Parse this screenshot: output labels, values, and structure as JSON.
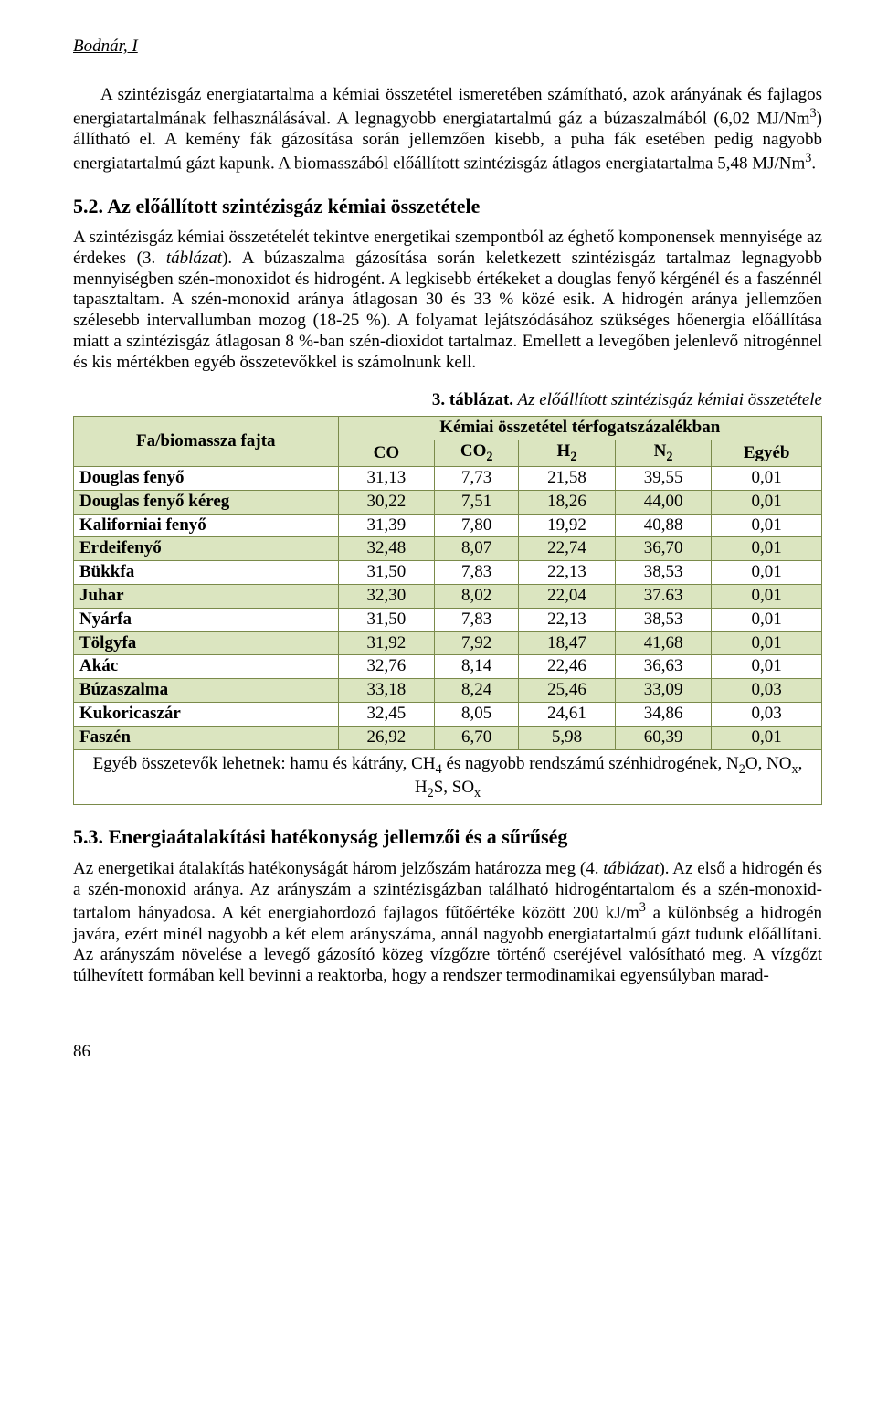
{
  "header": {
    "author": "Bodnár, I"
  },
  "p1_html": "A szintézisgáz energiatartalma a kémiai összetétel ismeretében számítható, azok arányának és fajlagos energiatartalmának felhasználásával. A legnagyobb energiatartalmú gáz a búzaszalmából (6,02 MJ/Nm<sup>3</sup>) állítható el. A kemény fák gázosítása során jellemzően kisebb, a puha fák esetében pedig nagyobb energiatartalmú gázt kapunk. A biomasszából előállított szintézisgáz átlagos energiatartalma 5,48 MJ/Nm<sup>3</sup>.",
  "sec52": {
    "title": "5.2. Az előállított szintézisgáz kémiai összetétele"
  },
  "p2_html": "A szintézisgáz kémiai összetételét tekintve energetikai szempontból az éghető komponensek mennyisége az érdekes (3. <i>táblázat</i>). A búzaszalma gázosítása során keletkezett szintézisgáz tartalmaz legnagyobb mennyiségben szén-monoxidot és hidrogént. A legkisebb értékeket a douglas fenyő kérgénél és a faszénnél tapasztaltam. A szén-monoxid aránya átlagosan 30 és 33 % közé esik. A hidrogén aránya jellemzően szélesebb intervallumban mozog (18-25 %). A folyamat lejátszódásához szükséges hőenergia előállítása miatt a szintézisgáz átlagosan 8 %-ban szén-dioxidot tartalmaz. Emellett a levegőben jelenlevő nitrogénnel és kis mértékben egyéb összetevőkkel is számolnunk kell.",
  "table": {
    "caption_prefix": "3. táblázat.",
    "caption_rest": " Az előállított szintézisgáz kémiai összetétele",
    "col_main": "Fa/biomassza fajta",
    "group_header": "Kémiai összetétel térfogatszázalékban",
    "columns_html": [
      "CO",
      "CO<sub>2</sub>",
      "H<sub>2</sub>",
      "N<sub>2</sub>",
      "Egyéb"
    ],
    "rows": [
      {
        "shade": false,
        "label": "Douglas fenyő",
        "vals": [
          "31,13",
          "7,73",
          "21,58",
          "39,55",
          "0,01"
        ]
      },
      {
        "shade": true,
        "label": "Douglas fenyő kéreg",
        "vals": [
          "30,22",
          "7,51",
          "18,26",
          "44,00",
          "0,01"
        ]
      },
      {
        "shade": false,
        "label": "Kaliforniai fenyő",
        "vals": [
          "31,39",
          "7,80",
          "19,92",
          "40,88",
          "0,01"
        ]
      },
      {
        "shade": true,
        "label": "Erdeifenyő",
        "vals": [
          "32,48",
          "8,07",
          "22,74",
          "36,70",
          "0,01"
        ]
      },
      {
        "shade": false,
        "label": "Bükkfa",
        "vals": [
          "31,50",
          "7,83",
          "22,13",
          "38,53",
          "0,01"
        ]
      },
      {
        "shade": true,
        "label": "Juhar",
        "vals": [
          "32,30",
          "8,02",
          "22,04",
          "37.63",
          "0,01"
        ]
      },
      {
        "shade": false,
        "label": "Nyárfa",
        "vals": [
          "31,50",
          "7,83",
          "22,13",
          "38,53",
          "0,01"
        ]
      },
      {
        "shade": true,
        "label": "Tölgyfa",
        "vals": [
          "31,92",
          "7,92",
          "18,47",
          "41,68",
          "0,01"
        ]
      },
      {
        "shade": false,
        "label": "Akác",
        "vals": [
          "32,76",
          "8,14",
          "22,46",
          "36,63",
          "0,01"
        ]
      },
      {
        "shade": true,
        "label": "Búzaszalma",
        "vals": [
          "33,18",
          "8,24",
          "25,46",
          "33,09",
          "0,03"
        ]
      },
      {
        "shade": false,
        "label": "Kukoricaszár",
        "vals": [
          "32,45",
          "8,05",
          "24,61",
          "34,86",
          "0,03"
        ]
      },
      {
        "shade": true,
        "label": "Faszén",
        "vals": [
          "26,92",
          "6,70",
          "5,98",
          "60,39",
          "0,01"
        ]
      }
    ],
    "footnote_html": "Egyéb összetevők lehetnek: hamu és kátrány, CH<sub>4</sub> és nagyobb rendszámú szénhidrogének, N<sub>2</sub>O, NO<sub>x</sub>, H<sub>2</sub>S, SO<sub>x</sub>",
    "colors": {
      "border": "#7a8a4a",
      "shade": "#dbe5c0",
      "background": "#ffffff"
    }
  },
  "sec53": {
    "title": "5.3. Energiaátalakítási hatékonyság jellemzői és a sűrűség"
  },
  "p3_html": "Az energetikai átalakítás hatékonyságát három jelzőszám határozza meg (4. <i>táblázat</i>). Az első a hidrogén és a szén-monoxid aránya. Az arányszám a szintézisgázban található hidrogéntartalom és a szén-monoxid-tartalom hányadosa. A két energiahordozó fajlagos fűtőértéke között 200 kJ/m<sup>3</sup> a különbség a hidrogén javára, ezért minél nagyobb a két elem arányszáma, annál nagyobb energiatartalmú gázt tudunk előállítani. Az arányszám növelése a levegő gázosító közeg vízgőzre történő cseréjével valósítható meg. A vízgőzt túlhevített formában kell bevinni a reaktorba, hogy a rendszer termodinamikai egyensúlyban marad-",
  "page": {
    "number": "86"
  }
}
